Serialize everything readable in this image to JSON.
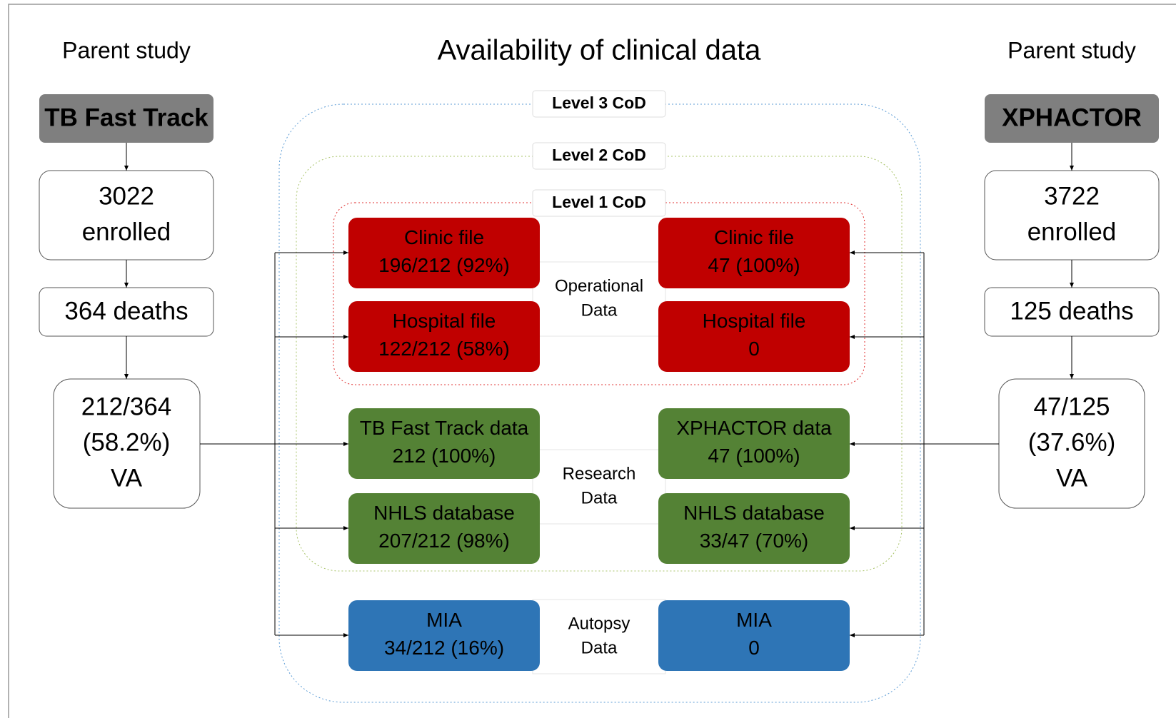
{
  "title": "Availability of clinical data",
  "left": {
    "heading": "Parent study",
    "study": "TB Fast Track",
    "enrolled": [
      "3022",
      "enrolled"
    ],
    "deaths": "364 deaths",
    "va": [
      "212/364",
      "(58.2%)",
      "VA"
    ]
  },
  "right": {
    "heading": "Parent study",
    "study": "XPHACTOR",
    "enrolled": [
      "3722",
      "enrolled"
    ],
    "deaths": "125 deaths",
    "va": [
      "47/125",
      "(37.6%)",
      "VA"
    ]
  },
  "levels": [
    "Level 3 CoD",
    "Level 2 CoD",
    "Level 1 CoD"
  ],
  "groups": [
    {
      "label": [
        "Operational",
        "Data"
      ],
      "rows": [
        {
          "left": [
            "Clinic file",
            "196/212  (92%)"
          ],
          "right": [
            "Clinic file",
            "47 (100%)"
          ]
        },
        {
          "left": [
            "Hospital file",
            "122/212 (58%)"
          ],
          "right": [
            "Hospital file",
            "0"
          ]
        }
      ]
    },
    {
      "label": [
        "Research",
        "Data"
      ],
      "rows": [
        {
          "left": [
            "TB Fast Track data",
            "212 (100%)"
          ],
          "right": [
            "XPHACTOR data",
            "47 (100%)"
          ]
        },
        {
          "left": [
            "NHLS database",
            "207/212 (98%)"
          ],
          "right": [
            "NHLS database",
            "33/47 (70%)"
          ]
        }
      ]
    },
    {
      "label": [
        "Autopsy",
        "Data"
      ],
      "rows": [
        {
          "left": [
            "MIA",
            "34/212 (16%)"
          ],
          "right": [
            "MIA",
            "0"
          ]
        }
      ]
    }
  ]
}
